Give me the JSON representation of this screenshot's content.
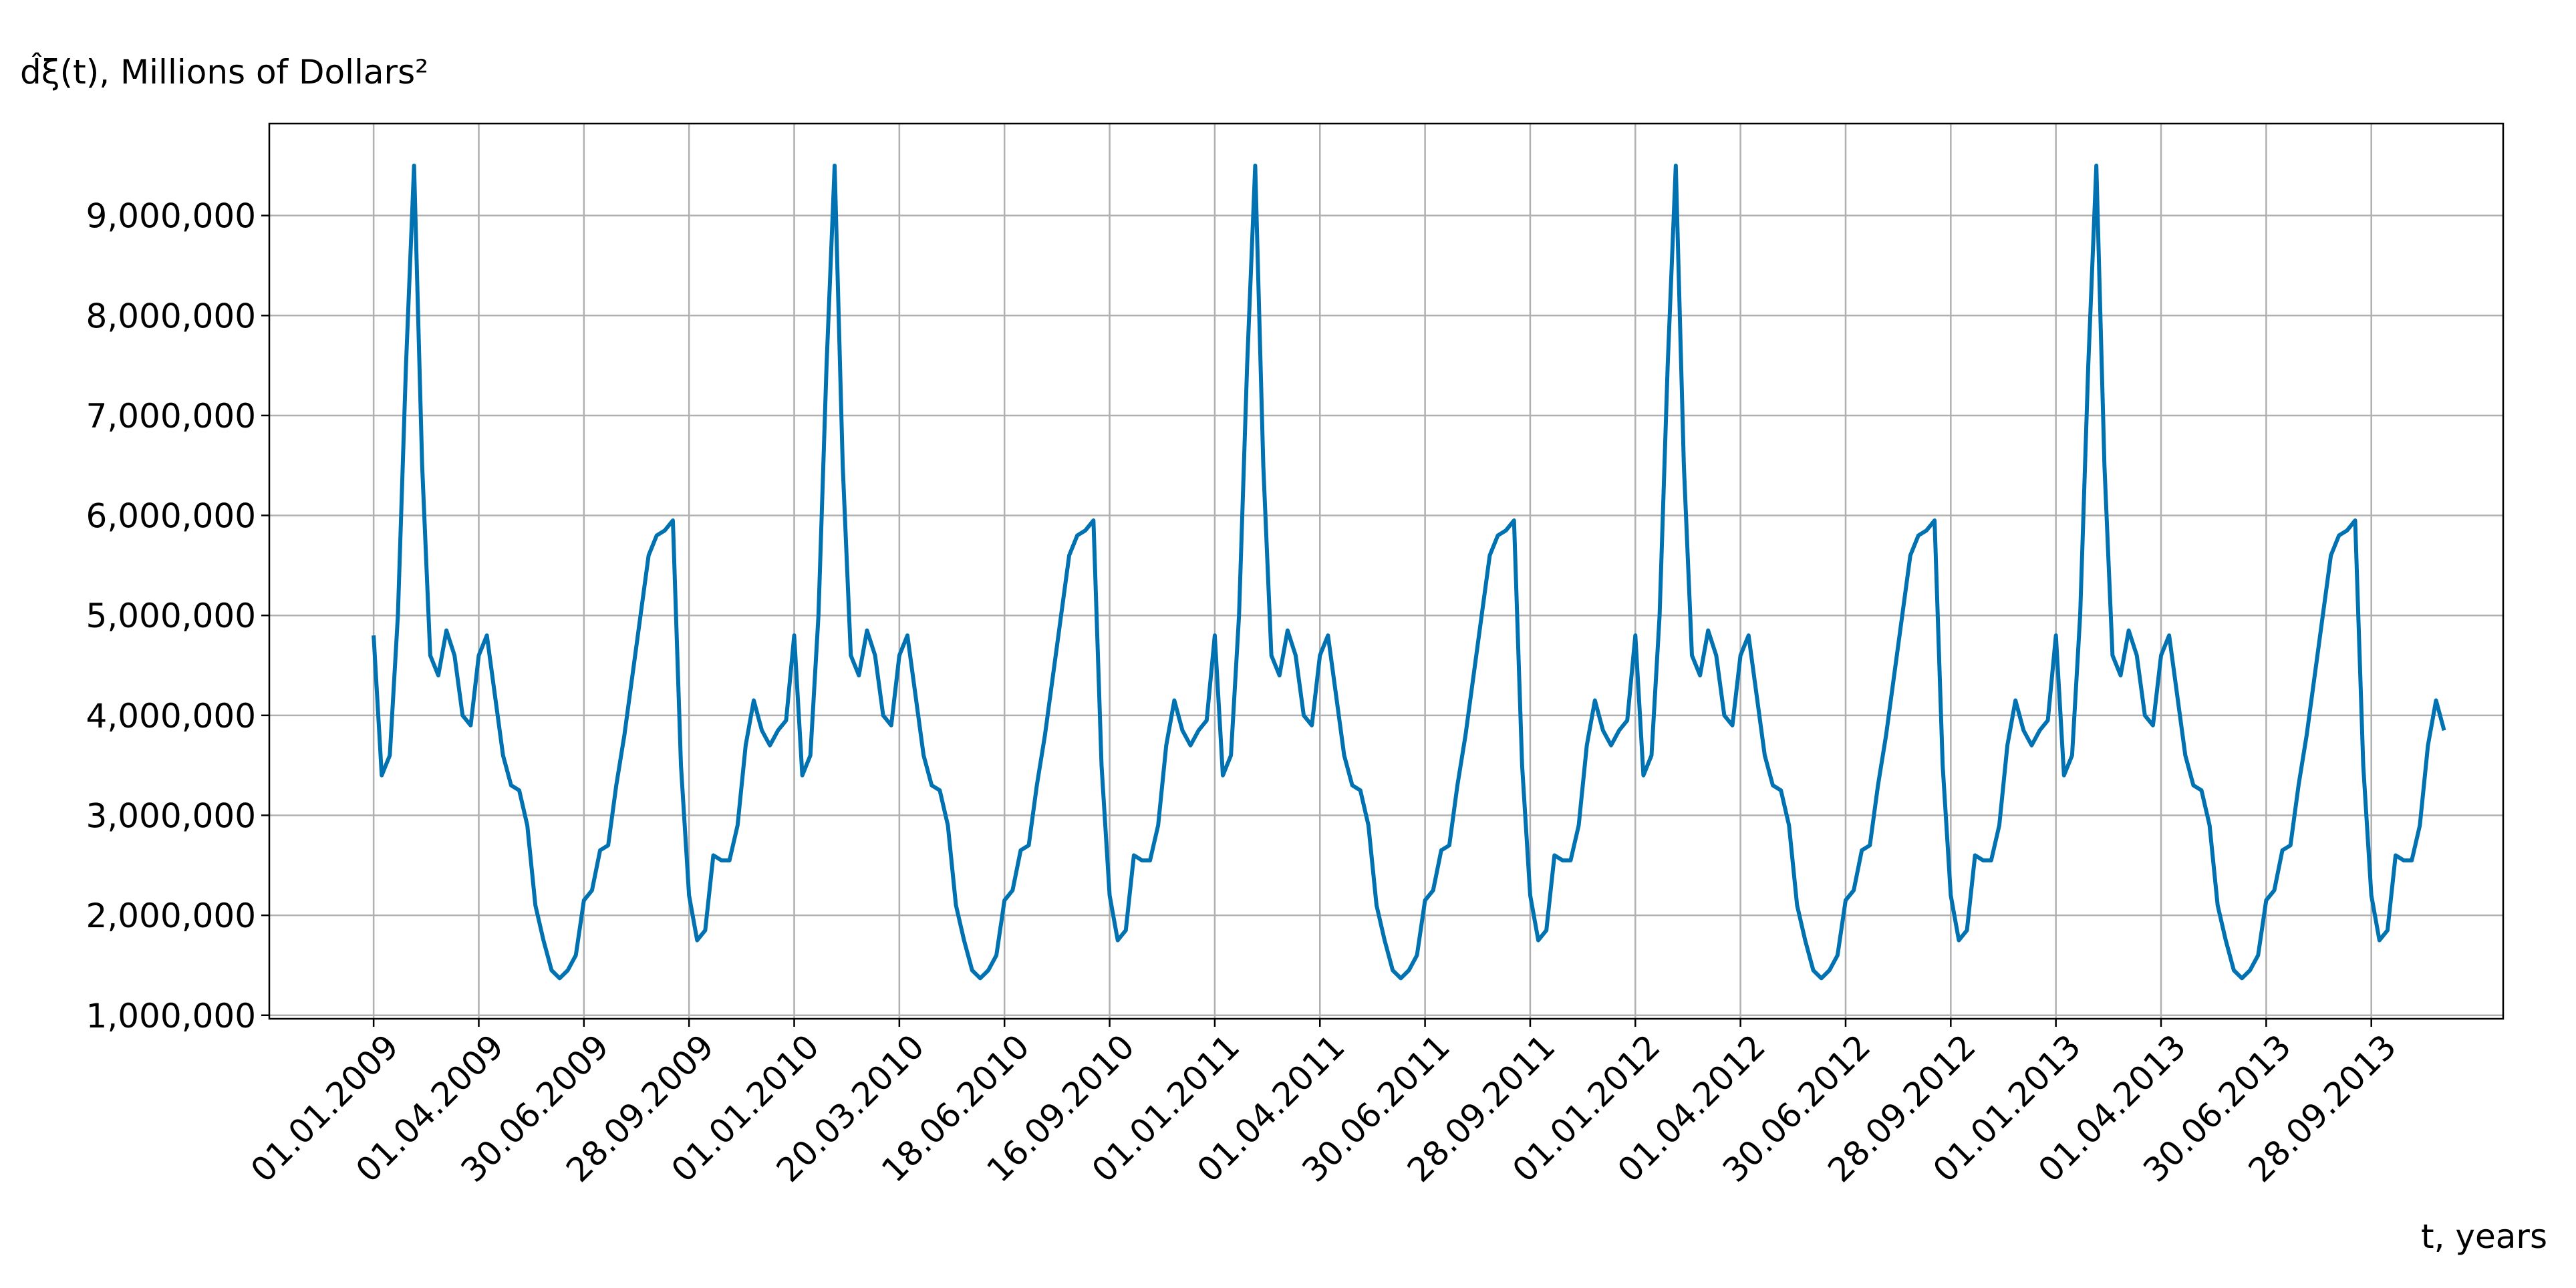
{
  "chart_data": {
    "type": "line",
    "title": "d̂ξ(t), Millions of Dollars²",
    "xlabel": "t, years",
    "grid": true,
    "series": [
      {
        "name": "d̂ξ(t)",
        "color": "#0072b2",
        "values": [
          4800000,
          3400000,
          3600000,
          5000000,
          7500000,
          9500000,
          6500000,
          4600000,
          4400000,
          4850000,
          4600000,
          4000000,
          3900000,
          4600000,
          4800000,
          4200000,
          3600000,
          3300000,
          3250000,
          2900000,
          2100000,
          1750000,
          1450000,
          1370000,
          1450000,
          1600000,
          2150000,
          2250000,
          2650000,
          2700000,
          3300000,
          3800000,
          4400000,
          5000000,
          5600000,
          5800000,
          5850000,
          5950000,
          3500000,
          2200000,
          1750000,
          1850000,
          2600000,
          2550000,
          2550000,
          2900000,
          3700000,
          4150000,
          3850000,
          3700000,
          3850000,
          3950000,
          4800000,
          3400000,
          3600000,
          5000000,
          7500000,
          9500000,
          6500000,
          4600000,
          4400000,
          4850000,
          4600000,
          4000000,
          3900000,
          4600000,
          4800000,
          4200000,
          3600000,
          3300000,
          3250000,
          2900000,
          2100000,
          1750000,
          1450000,
          1370000,
          1450000,
          1600000,
          2150000,
          2250000,
          2650000,
          2700000,
          3300000,
          3800000,
          4400000,
          5000000,
          5600000,
          5800000,
          5850000,
          5950000,
          3500000,
          2200000,
          1750000,
          1850000,
          2600000,
          2550000,
          2550000,
          2900000,
          3700000,
          4150000,
          3850000,
          3700000,
          3850000,
          3950000,
          4800000,
          3400000,
          3600000,
          5000000,
          7500000,
          9500000,
          6500000,
          4600000,
          4400000,
          4850000,
          4600000,
          4000000,
          3900000,
          4600000,
          4800000,
          4200000,
          3600000,
          3300000,
          3250000,
          2900000,
          2100000,
          1750000,
          1450000,
          1370000,
          1450000,
          1600000,
          2150000,
          2250000,
          2650000,
          2700000,
          3300000,
          3800000,
          4400000,
          5000000,
          5600000,
          5800000,
          5850000,
          5950000,
          3500000,
          2200000,
          1750000,
          1850000,
          2600000,
          2550000,
          2550000,
          2900000,
          3700000,
          4150000,
          3850000,
          3700000,
          3850000,
          3950000,
          4800000,
          3400000,
          3600000,
          5000000,
          7500000,
          9500000,
          6500000,
          4600000,
          4400000,
          4850000,
          4600000,
          4000000,
          3900000,
          4600000,
          4800000,
          4200000,
          3600000,
          3300000,
          3250000,
          2900000,
          2100000,
          1750000,
          1450000,
          1370000,
          1450000,
          1600000,
          2150000,
          2250000,
          2650000,
          2700000,
          3300000,
          3800000,
          4400000,
          5000000,
          5600000,
          5800000,
          5850000,
          5950000,
          3500000,
          2200000,
          1750000,
          1850000,
          2600000,
          2550000,
          2550000,
          2900000,
          3700000,
          4150000,
          3850000,
          3700000,
          3850000,
          3950000,
          4800000,
          3400000,
          3600000,
          5000000,
          7500000,
          9500000,
          6500000,
          4600000,
          4400000,
          4850000,
          4600000,
          4000000,
          3900000,
          4600000,
          4800000,
          4200000,
          3600000,
          3300000,
          3250000,
          2900000,
          2100000,
          1750000,
          1450000,
          1370000,
          1450000,
          1600000,
          2150000,
          2250000,
          2650000,
          2700000,
          3300000,
          3800000,
          4400000,
          5000000,
          5600000,
          5800000,
          5850000,
          5950000,
          3500000,
          2200000,
          1750000,
          1850000,
          2600000,
          2550000,
          2550000,
          2900000,
          3700000,
          4150000,
          3850000
        ]
      }
    ],
    "xlim": [
      -12.9,
      263.3
    ],
    "xticks": [
      {
        "value": 0,
        "label": "01.01.2009"
      },
      {
        "value": 13,
        "label": "01.04.2009"
      },
      {
        "value": 26,
        "label": "30.06.2009"
      },
      {
        "value": 39,
        "label": "28.09.2009"
      },
      {
        "value": 52,
        "label": "01.01.2010"
      },
      {
        "value": 65,
        "label": "20.03.2010"
      },
      {
        "value": 78,
        "label": "18.06.2010"
      },
      {
        "value": 91,
        "label": "16.09.2010"
      },
      {
        "value": 104,
        "label": "01.01.2011"
      },
      {
        "value": 117,
        "label": "01.04.2011"
      },
      {
        "value": 130,
        "label": "30.06.2011"
      },
      {
        "value": 143,
        "label": "28.09.2011"
      },
      {
        "value": 156,
        "label": "01.01.2012"
      },
      {
        "value": 169,
        "label": "01.04.2012"
      },
      {
        "value": 182,
        "label": "30.06.2012"
      },
      {
        "value": 195,
        "label": "28.09.2012"
      },
      {
        "value": 208,
        "label": "01.01.2013"
      },
      {
        "value": 221,
        "label": "01.04.2013"
      },
      {
        "value": 234,
        "label": "30.06.2013"
      },
      {
        "value": 247,
        "label": "28.09.2013"
      }
    ],
    "ylim": [
      965000,
      9920000
    ],
    "yticks": [
      {
        "value": 1000000,
        "label": "1,000,000"
      },
      {
        "value": 2000000,
        "label": "2,000,000"
      },
      {
        "value": 3000000,
        "label": "3,000,000"
      },
      {
        "value": 4000000,
        "label": "4,000,000"
      },
      {
        "value": 5000000,
        "label": "5,000,000"
      },
      {
        "value": 6000000,
        "label": "6,000,000"
      },
      {
        "value": 7000000,
        "label": "7,000,000"
      },
      {
        "value": 8000000,
        "label": "8,000,000"
      },
      {
        "value": 9000000,
        "label": "9,000,000"
      }
    ]
  }
}
